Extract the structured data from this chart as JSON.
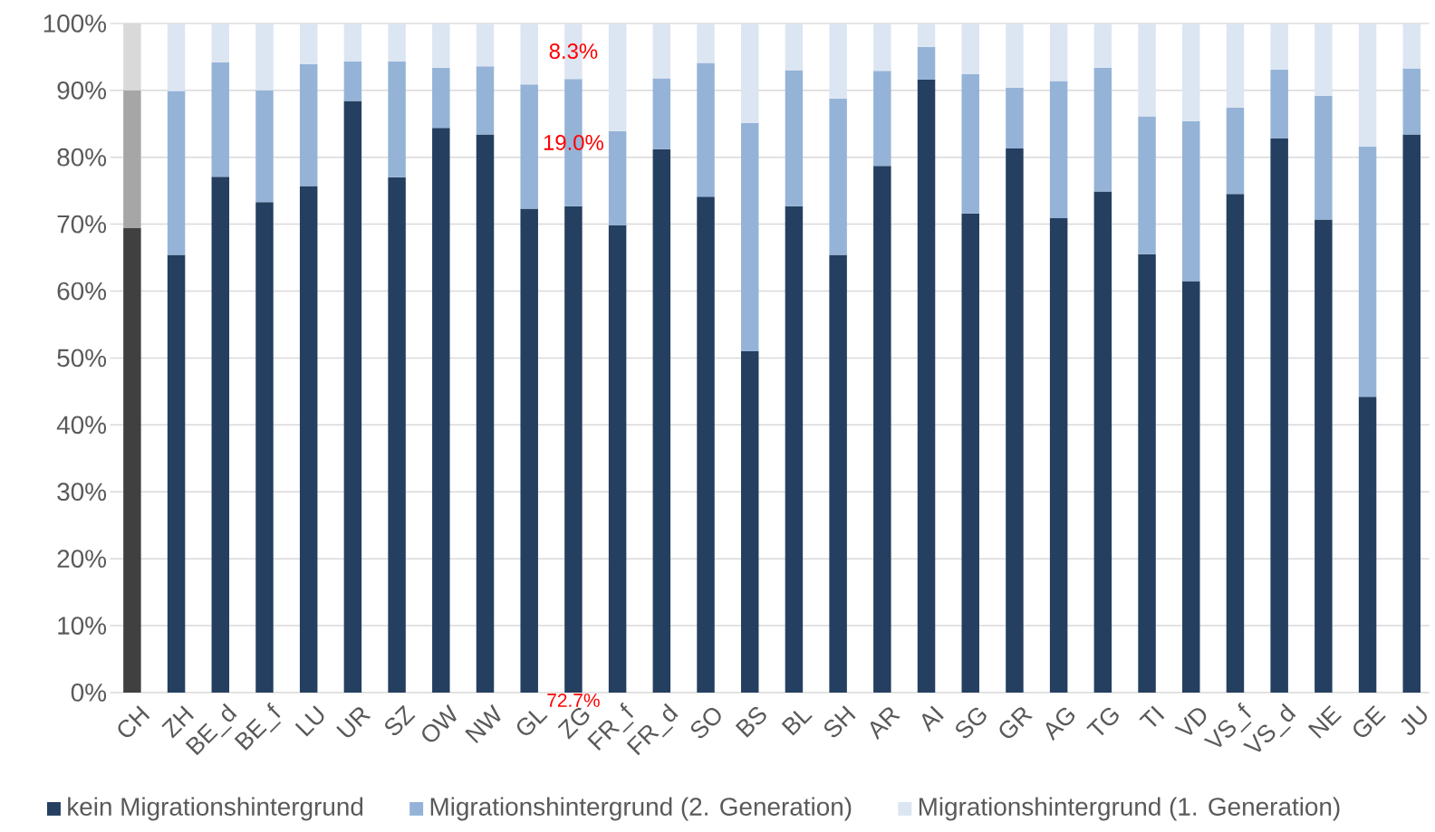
{
  "chart_data": {
    "type": "bar",
    "stacked": true,
    "categories": [
      "CH",
      "ZH",
      "BE_d",
      "BE_f",
      "LU",
      "UR",
      "SZ",
      "OW",
      "NW",
      "GL",
      "ZG",
      "FR_f",
      "FR_d",
      "SO",
      "BS",
      "BL",
      "SH",
      "AR",
      "AI",
      "SG",
      "GR",
      "AG",
      "TG",
      "TI",
      "VD",
      "VS_f",
      "VS_d",
      "NE",
      "GE",
      "JU"
    ],
    "series": [
      {
        "name": "kein Migrationshintergrund",
        "color": "#243f60",
        "colors": [
          "#404040",
          "#243f60",
          "#243f60",
          "#243f60",
          "#243f60",
          "#243f60",
          "#243f60",
          "#243f60",
          "#243f60",
          "#243f60",
          "#243f60",
          "#243f60",
          "#243f60",
          "#243f60",
          "#243f60",
          "#243f60",
          "#243f60",
          "#243f60",
          "#243f60",
          "#243f60",
          "#243f60",
          "#243f60",
          "#243f60",
          "#243f60",
          "#243f60",
          "#243f60",
          "#243f60",
          "#243f60",
          "#243f60",
          "#243f60"
        ],
        "values": [
          69.4,
          65.4,
          77.1,
          73.3,
          75.7,
          88.4,
          77.0,
          84.4,
          83.4,
          72.3,
          72.7,
          69.8,
          81.2,
          74.1,
          51.0,
          72.7,
          65.4,
          78.7,
          91.6,
          71.6,
          81.3,
          70.9,
          74.9,
          65.5,
          61.5,
          74.5,
          82.8,
          70.7,
          44.2,
          83.4
        ],
        "value_labels": [
          null,
          null,
          null,
          null,
          null,
          null,
          null,
          null,
          null,
          null,
          "72.7%",
          null,
          null,
          null,
          null,
          null,
          null,
          null,
          null,
          null,
          null,
          null,
          null,
          null,
          null,
          null,
          null,
          null,
          null,
          null
        ]
      },
      {
        "name": "Migrationshintergrund (2. Generation)",
        "color": "#95b3d7",
        "colors": [
          "#a6a6a6",
          "#95b3d7",
          "#95b3d7",
          "#95b3d7",
          "#95b3d7",
          "#95b3d7",
          "#95b3d7",
          "#95b3d7",
          "#95b3d7",
          "#95b3d7",
          "#95b3d7",
          "#95b3d7",
          "#95b3d7",
          "#95b3d7",
          "#95b3d7",
          "#95b3d7",
          "#95b3d7",
          "#95b3d7",
          "#95b3d7",
          "#95b3d7",
          "#95b3d7",
          "#95b3d7",
          "#95b3d7",
          "#95b3d7",
          "#95b3d7",
          "#95b3d7",
          "#95b3d7",
          "#95b3d7",
          "#95b3d7",
          "#95b3d7"
        ],
        "values": [
          20.6,
          24.5,
          17.1,
          16.7,
          18.2,
          5.9,
          17.3,
          9.0,
          10.2,
          18.6,
          19.0,
          14.1,
          10.6,
          20.0,
          34.1,
          20.3,
          23.4,
          14.2,
          4.9,
          20.8,
          9.1,
          20.5,
          18.5,
          20.6,
          23.9,
          12.9,
          10.3,
          18.5,
          37.4,
          9.9
        ],
        "value_labels": [
          null,
          null,
          null,
          null,
          null,
          null,
          null,
          null,
          null,
          null,
          "19.0%",
          null,
          null,
          null,
          null,
          null,
          null,
          null,
          null,
          null,
          null,
          null,
          null,
          null,
          null,
          null,
          null,
          null,
          null,
          null
        ]
      },
      {
        "name": "Migrationshintergrund (1. Generation)",
        "color": "#dce6f2",
        "colors": [
          "#d9d9d9",
          "#dce6f2",
          "#dce6f2",
          "#dce6f2",
          "#dce6f2",
          "#dce6f2",
          "#dce6f2",
          "#dce6f2",
          "#dce6f2",
          "#dce6f2",
          "#dce6f2",
          "#dce6f2",
          "#dce6f2",
          "#dce6f2",
          "#dce6f2",
          "#dce6f2",
          "#dce6f2",
          "#dce6f2",
          "#dce6f2",
          "#dce6f2",
          "#dce6f2",
          "#dce6f2",
          "#dce6f2",
          "#dce6f2",
          "#dce6f2",
          "#dce6f2",
          "#dce6f2",
          "#dce6f2",
          "#dce6f2",
          "#dce6f2"
        ],
        "values": [
          10.0,
          10.1,
          5.8,
          10.0,
          6.1,
          5.7,
          5.7,
          6.6,
          6.4,
          9.1,
          8.3,
          16.1,
          8.2,
          5.9,
          14.9,
          7.0,
          11.2,
          7.1,
          3.5,
          7.6,
          9.6,
          8.6,
          6.6,
          13.9,
          14.6,
          12.6,
          6.9,
          10.8,
          18.4,
          6.7
        ],
        "value_labels": [
          null,
          null,
          null,
          null,
          null,
          null,
          null,
          null,
          null,
          null,
          "8.3%",
          null,
          null,
          null,
          null,
          null,
          null,
          null,
          null,
          null,
          null,
          null,
          null,
          null,
          null,
          null,
          null,
          null,
          null,
          null
        ]
      }
    ],
    "ylim": [
      0,
      100
    ],
    "yticks": [
      {
        "value": 0,
        "label": "0%"
      },
      {
        "value": 10,
        "label": "10%"
      },
      {
        "value": 20,
        "label": "20%"
      },
      {
        "value": 30,
        "label": "30%"
      },
      {
        "value": 40,
        "label": "40%"
      },
      {
        "value": 50,
        "label": "50%"
      },
      {
        "value": 60,
        "label": "60%"
      },
      {
        "value": 70,
        "label": "70%"
      },
      {
        "value": 80,
        "label": "80%"
      },
      {
        "value": 90,
        "label": "90%"
      },
      {
        "value": 100,
        "label": "100%"
      }
    ],
    "grid": "y",
    "legend": "bottom"
  }
}
